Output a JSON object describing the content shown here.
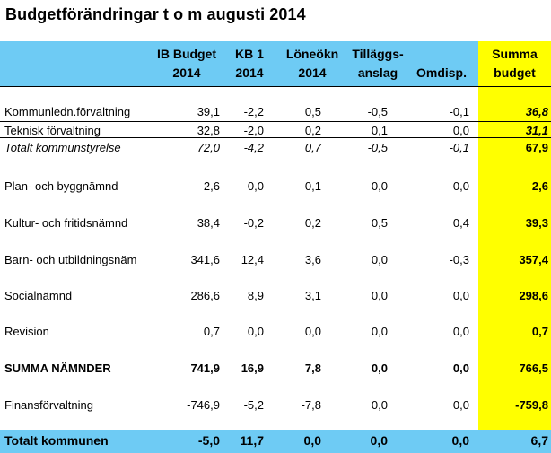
{
  "title": "Budgetförändringar t o m augusti 2014",
  "headers": [
    {
      "line1": "IB Budget",
      "line2": "2014"
    },
    {
      "line1": "KB 1",
      "line2": "2014"
    },
    {
      "line1": "Löneökn",
      "line2": "2014"
    },
    {
      "line1": "Tilläggs-",
      "line2": "anslag"
    },
    {
      "line1": "",
      "line2": "Omdisp."
    },
    {
      "line1": "Summa",
      "line2": "budget"
    }
  ],
  "rows": [
    {
      "label": "Kommunledn.förvaltning",
      "v": [
        "39,1",
        "-2,2",
        "0,5",
        "-0,5",
        "-0,1",
        "36,8"
      ]
    },
    {
      "label": "Teknisk förvaltning",
      "v": [
        "32,8",
        "-2,0",
        "0,2",
        "0,1",
        "0,0",
        "31,1"
      ]
    },
    {
      "label": "Totalt kommunstyrelse",
      "v": [
        "72,0",
        "-4,2",
        "0,7",
        "-0,5",
        "-0,1",
        "67,9"
      ]
    },
    {
      "label": "Plan- och byggnämnd",
      "v": [
        "2,6",
        "0,0",
        "0,1",
        "0,0",
        "0,0",
        "2,6"
      ]
    },
    {
      "label": "Kultur- och fritidsnämnd",
      "v": [
        "38,4",
        "-0,2",
        "0,2",
        "0,5",
        "0,4",
        "39,3"
      ]
    },
    {
      "label": "Barn- och utbildningsnäm",
      "v": [
        "341,6",
        "12,4",
        "3,6",
        "0,0",
        "-0,3",
        "357,4"
      ]
    },
    {
      "label": "Socialnämnd",
      "v": [
        "286,6",
        "8,9",
        "3,1",
        "0,0",
        "0,0",
        "298,6"
      ]
    },
    {
      "label": "Revision",
      "v": [
        "0,7",
        "0,0",
        "0,0",
        "0,0",
        "0,0",
        "0,7"
      ]
    },
    {
      "label": "SUMMA NÄMNDER",
      "v": [
        "741,9",
        "16,9",
        "7,8",
        "0,0",
        "0,0",
        "766,5"
      ]
    },
    {
      "label": "Finansförvaltning",
      "v": [
        "-746,9",
        "-5,2",
        "-7,8",
        "0,0",
        "0,0",
        "-759,8"
      ]
    }
  ],
  "total": {
    "label": "Totalt kommunen",
    "v": [
      "-5,0",
      "11,7",
      "0,0",
      "0,0",
      "0,0",
      "6,7"
    ]
  }
}
